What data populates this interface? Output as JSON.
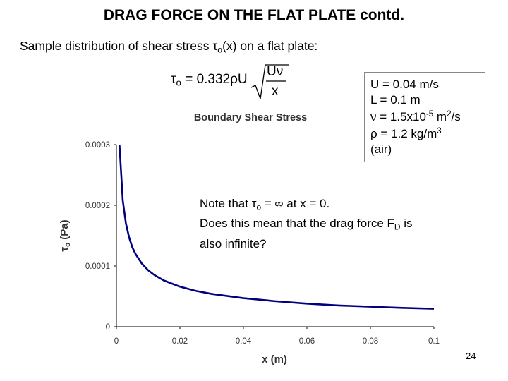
{
  "slide": {
    "title": "DRAG FORCE ON THE FLAT PLATE contd.",
    "intro_before": "Sample distribution of shear stress ",
    "intro_symbol": "τ",
    "intro_sub": "o",
    "intro_after": "(x) on a flat plate:",
    "page_number": "24"
  },
  "formula": {
    "lhs_symbol": "τ",
    "lhs_sub": "o",
    "equals_coeff": " = 0.332ρU",
    "numerator": "Uν",
    "denominator": "x"
  },
  "parameters": {
    "u": "U = 0.04 m/s",
    "l": "L = 0.1 m",
    "nu_before": "ν = 1.5x10",
    "nu_exp": "-5",
    "nu_mid": " m",
    "nu_exp2": "2",
    "nu_after": "/s",
    "rho_before": "ρ = 1.2 kg/m",
    "rho_exp": "3",
    "medium": "(air)"
  },
  "note": {
    "line1_before": "Note that ",
    "line1_symbol": "τ",
    "line1_sub": "o",
    "line1_after": " = ∞ at x = 0.",
    "line2_before": "Does this mean that the drag force F",
    "line2_sub": "D",
    "line2_after": " is",
    "line3": "also infinite?"
  },
  "chart_data": {
    "type": "line",
    "title": "Boundary Shear Stress",
    "xlabel": "x (m)",
    "ylabel_symbol": "τ",
    "ylabel_sub": "o",
    "ylabel_unit": " (Pa)",
    "xlim": [
      0,
      0.1
    ],
    "ylim": [
      0,
      0.0003
    ],
    "x_ticks": [
      {
        "value": 0,
        "label": "0"
      },
      {
        "value": 0.02,
        "label": "0.02"
      },
      {
        "value": 0.04,
        "label": "0.04"
      },
      {
        "value": 0.06,
        "label": "0.06"
      },
      {
        "value": 0.08,
        "label": "0.08"
      },
      {
        "value": 0.1,
        "label": "0.1"
      }
    ],
    "y_ticks": [
      {
        "value": 0,
        "label": "0"
      },
      {
        "value": 0.0001,
        "label": "0.0001"
      },
      {
        "value": 0.0002,
        "label": "0.0002"
      },
      {
        "value": 0.0003,
        "label": "0.0003"
      }
    ],
    "grid": false,
    "line_color": "#000080",
    "series": [
      {
        "x": [
          0.00096,
          0.002,
          0.003,
          0.004,
          0.005,
          0.006,
          0.008,
          0.01,
          0.012,
          0.015,
          0.02,
          0.025,
          0.03,
          0.04,
          0.05,
          0.06,
          0.07,
          0.08,
          0.09,
          0.1
        ],
        "y": [
          0.0003,
          0.000208,
          0.00017,
          0.000147,
          0.000131,
          0.00012,
          0.000104,
          9.3e-05,
          8.5e-05,
          7.6e-05,
          6.6e-05,
          5.9e-05,
          5.4e-05,
          4.7e-05,
          4.2e-05,
          3.8e-05,
          3.5e-05,
          3.3e-05,
          3.1e-05,
          2.95e-05
        ]
      }
    ]
  }
}
